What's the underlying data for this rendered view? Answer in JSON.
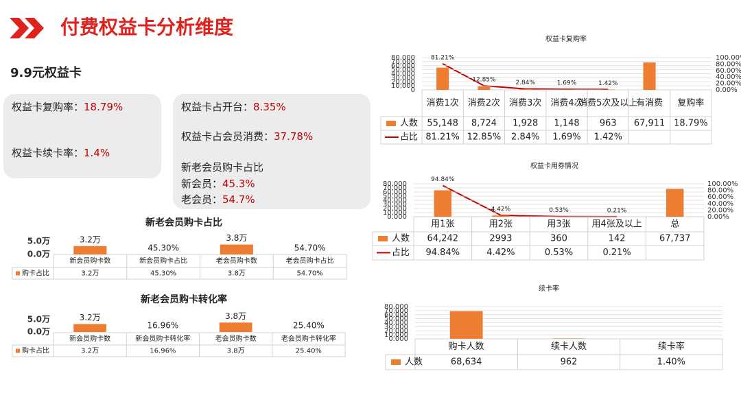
{
  "header": {
    "title": "付费权益卡分析维度",
    "section": "9.9元权益卡"
  },
  "cards": [
    {
      "items": [
        {
          "label": "权益卡复购率：",
          "value": "18.79%"
        },
        {
          "label": "权益卡续卡率：",
          "value": "1.4%"
        }
      ]
    },
    {
      "items": [
        {
          "label": "权益卡占开台：",
          "value": "8.35%"
        },
        {
          "label": "权益卡占会员消费：",
          "value": "37.78%"
        }
      ],
      "subtitle": "新老会员购卡占比",
      "subitems": [
        {
          "label": "新会员：",
          "value": "45.3%"
        },
        {
          "label": "老会员：",
          "value": "54.7%"
        }
      ]
    }
  ],
  "chart_data": [
    {
      "type": "bar",
      "title": "新老会员购卡占比",
      "categories": [
        "新会员购卡数",
        "新会员购卡占比",
        "老会员购卡数",
        "老会员购卡占比"
      ],
      "series": [
        {
          "name": "购卡占比",
          "color": "#ed7d31",
          "values": [
            32000,
            45.3,
            38000,
            54.7
          ],
          "value_labels": [
            "3.2万",
            "45.30%",
            "3.8万",
            "54.70%"
          ]
        }
      ],
      "ylim": [
        0,
        50000
      ],
      "yticks": [
        {
          "value": 0,
          "label": "0.0万"
        },
        {
          "value": 50000,
          "label": "5.0万"
        }
      ],
      "grid": false
    },
    {
      "type": "bar",
      "title": "新老会员购卡转化率",
      "categories": [
        "新会员购卡数",
        "新会员购卡转化率",
        "老会员购卡数",
        "老会员购卡转化率"
      ],
      "series": [
        {
          "name": "购卡占比",
          "color": "#ed7d31",
          "values": [
            32000,
            16.96,
            38000,
            25.4
          ],
          "value_labels": [
            "3.2万",
            "16.96%",
            "3.8万",
            "25.40%"
          ]
        }
      ],
      "ylim": [
        0,
        50000
      ],
      "yticks": [
        {
          "value": 0,
          "label": "0.0万"
        },
        {
          "value": 50000,
          "label": "5.0万"
        }
      ],
      "grid": false
    },
    {
      "type": "combo",
      "title": "权益卡复购率",
      "categories": [
        "消费1次",
        "消费2次",
        "消费3次",
        "消费4次",
        "消费5次及以上",
        "有消费",
        "复购率"
      ],
      "series": [
        {
          "name": "人数",
          "color": "#ed7d31",
          "values": [
            55148,
            8724,
            1928,
            1148,
            963,
            67911,
            18.79
          ],
          "value_labels": [
            "55,148",
            "8,724",
            "1,928",
            "1,148",
            "963",
            "67,911",
            "18.79%"
          ]
        },
        {
          "name": "占比",
          "color": "#c00000",
          "axis": "y2",
          "values": [
            81.21,
            12.85,
            2.84,
            1.69,
            1.42,
            null,
            null
          ],
          "value_labels": [
            "81.21%",
            "12.85%",
            "2.84%",
            "1.69%",
            "1.42%",
            null,
            null
          ]
        }
      ],
      "ylim": [
        0,
        80000
      ],
      "yticks": [
        0,
        {
          "value": 10000,
          "label": "10,000"
        },
        {
          "value": 20000,
          "label": "20,000"
        },
        {
          "value": 30000,
          "label": "30,000"
        },
        {
          "value": 40000,
          "label": "40,000"
        },
        {
          "value": 50000,
          "label": "50,000"
        },
        {
          "value": 60000,
          "label": "60,000"
        },
        {
          "value": 70000,
          "label": "70,000"
        },
        {
          "value": 80000,
          "label": "80,000"
        }
      ],
      "y2lim": [
        0,
        100
      ],
      "y2ticks": [
        {
          "value": 0,
          "label": "0.00%"
        },
        {
          "value": 20,
          "label": "20.00%"
        },
        {
          "value": 40,
          "label": "40.00%"
        },
        {
          "value": 60,
          "label": "60.00%"
        },
        {
          "value": 80,
          "label": "80.00%"
        },
        {
          "value": 100,
          "label": "100.00%"
        }
      ],
      "grid": true
    },
    {
      "type": "combo",
      "title": "权益卡用券情况",
      "categories": [
        "用1张",
        "用2张",
        "用3张",
        "用4张及以上",
        "总"
      ],
      "series": [
        {
          "name": "人数",
          "color": "#ed7d31",
          "values": [
            64242,
            2993,
            360,
            142,
            67737
          ],
          "value_labels": [
            "64,242",
            "2993",
            "360",
            "142",
            "67,737"
          ]
        },
        {
          "name": "占比",
          "color": "#c00000",
          "axis": "y2",
          "values": [
            94.84,
            4.42,
            0.53,
            0.21,
            null
          ],
          "value_labels": [
            "94.84%",
            "4.42%",
            "0.53%",
            "0.21%",
            null
          ]
        }
      ],
      "ylim": [
        0,
        80000
      ],
      "yticks": [
        {
          "value": 0,
          "label": "0.000"
        },
        {
          "value": 10000,
          "label": "10,000"
        },
        {
          "value": 20000,
          "label": "20,000"
        },
        {
          "value": 30000,
          "label": "30,000"
        },
        {
          "value": 40000,
          "label": "40,000"
        },
        {
          "value": 50000,
          "label": "50,000"
        },
        {
          "value": 60000,
          "label": "60,000"
        },
        {
          "value": 70000,
          "label": "70,000"
        },
        {
          "value": 80000,
          "label": "80,000"
        }
      ],
      "y2lim": [
        0,
        100
      ],
      "y2ticks": [
        {
          "value": 0,
          "label": "0.00%"
        },
        {
          "value": 20,
          "label": "20.00%"
        },
        {
          "value": 40,
          "label": "40.00%"
        },
        {
          "value": 60,
          "label": "60.00%"
        },
        {
          "value": 80,
          "label": "80.00%"
        },
        {
          "value": 100,
          "label": "100.00%"
        }
      ],
      "grid": true
    },
    {
      "type": "bar",
      "title": "续卡率",
      "categories": [
        "购卡人数",
        "续卡人数",
        "续卡率"
      ],
      "series": [
        {
          "name": "人数",
          "color": "#ed7d31",
          "values": [
            68634,
            962,
            1.4
          ],
          "value_labels": [
            "68,634",
            "962",
            "1.40%"
          ]
        }
      ],
      "ylim": [
        0,
        80000
      ],
      "yticks": [
        {
          "value": 0,
          "label": "0.000"
        },
        {
          "value": 10000,
          "label": "10,000"
        },
        {
          "value": 20000,
          "label": "20,000"
        },
        {
          "value": 30000,
          "label": "30,000"
        },
        {
          "value": 40000,
          "label": "40,000"
        },
        {
          "value": 50000,
          "label": "50,000"
        },
        {
          "value": 60000,
          "label": "60,000"
        },
        {
          "value": 70000,
          "label": "70,000"
        },
        {
          "value": 80000,
          "label": "80,000"
        }
      ],
      "grid": true
    }
  ]
}
